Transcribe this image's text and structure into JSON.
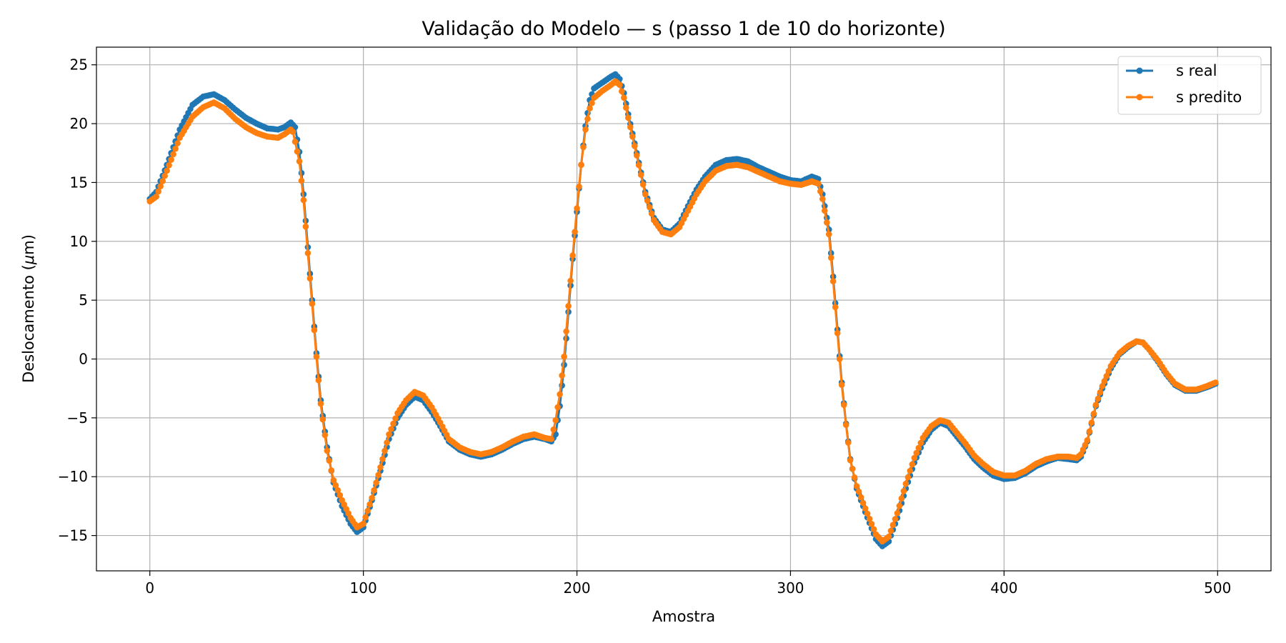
{
  "chart_data": {
    "type": "line",
    "title": "Validação do Modelo — s (passo 1 de 10 do horizonte)",
    "xlabel": "Amostra",
    "ylabel_main": "Deslocamento (",
    "ylabel_mu": "μ",
    "ylabel_unit": "m)",
    "xlim": [
      -25,
      525
    ],
    "ylim": [
      -18,
      26.5
    ],
    "xticks": [
      0,
      100,
      200,
      300,
      400,
      500
    ],
    "yticks": [
      -15,
      -10,
      -5,
      0,
      5,
      10,
      15,
      20,
      25
    ],
    "ytick_labels": [
      "−15",
      "−10",
      "−5",
      "0",
      "5",
      "10",
      "15",
      "20",
      "25"
    ],
    "grid": true,
    "legend_position": "upper-right",
    "keypoints_real": [
      [
        0,
        13.6
      ],
      [
        3,
        14.2
      ],
      [
        8,
        16.5
      ],
      [
        14,
        19.5
      ],
      [
        20,
        21.6
      ],
      [
        25,
        22.3
      ],
      [
        30,
        22.5
      ],
      [
        35,
        22.0
      ],
      [
        40,
        21.2
      ],
      [
        45,
        20.5
      ],
      [
        50,
        20.0
      ],
      [
        55,
        19.6
      ],
      [
        60,
        19.5
      ],
      [
        63,
        19.7
      ],
      [
        66,
        20.1
      ],
      [
        68,
        19.7
      ],
      [
        70,
        17.6
      ],
      [
        72,
        14.0
      ],
      [
        74,
        9.5
      ],
      [
        76,
        5.0
      ],
      [
        78,
        0.5
      ],
      [
        80,
        -3.5
      ],
      [
        83,
        -7.5
      ],
      [
        86,
        -10.5
      ],
      [
        90,
        -12.5
      ],
      [
        94,
        -14.0
      ],
      [
        97,
        -14.7
      ],
      [
        100,
        -14.3
      ],
      [
        104,
        -12.0
      ],
      [
        108,
        -9.5
      ],
      [
        112,
        -6.8
      ],
      [
        116,
        -5.0
      ],
      [
        120,
        -3.9
      ],
      [
        124,
        -3.2
      ],
      [
        128,
        -3.5
      ],
      [
        132,
        -4.5
      ],
      [
        136,
        -5.7
      ],
      [
        140,
        -7.0
      ],
      [
        145,
        -7.7
      ],
      [
        150,
        -8.1
      ],
      [
        155,
        -8.3
      ],
      [
        160,
        -8.1
      ],
      [
        165,
        -7.7
      ],
      [
        170,
        -7.2
      ],
      [
        175,
        -6.8
      ],
      [
        180,
        -6.6
      ],
      [
        185,
        -6.8
      ],
      [
        188,
        -7.0
      ],
      [
        190,
        -6.4
      ],
      [
        192,
        -4.0
      ],
      [
        194,
        -0.5
      ],
      [
        196,
        4.0
      ],
      [
        198,
        8.5
      ],
      [
        200,
        12.5
      ],
      [
        202,
        16.5
      ],
      [
        204,
        19.8
      ],
      [
        206,
        22.0
      ],
      [
        208,
        23.0
      ],
      [
        212,
        23.5
      ],
      [
        216,
        24.0
      ],
      [
        218,
        24.2
      ],
      [
        220,
        23.8
      ],
      [
        222,
        22.6
      ],
      [
        224,
        20.8
      ],
      [
        228,
        17.5
      ],
      [
        232,
        14.2
      ],
      [
        236,
        12.0
      ],
      [
        240,
        11.0
      ],
      [
        244,
        10.8
      ],
      [
        248,
        11.5
      ],
      [
        252,
        13.0
      ],
      [
        256,
        14.4
      ],
      [
        260,
        15.5
      ],
      [
        265,
        16.5
      ],
      [
        270,
        16.9
      ],
      [
        275,
        17.0
      ],
      [
        280,
        16.8
      ],
      [
        285,
        16.3
      ],
      [
        290,
        15.9
      ],
      [
        295,
        15.5
      ],
      [
        300,
        15.2
      ],
      [
        305,
        15.1
      ],
      [
        310,
        15.5
      ],
      [
        313,
        15.3
      ],
      [
        315,
        14.0
      ],
      [
        318,
        11.0
      ],
      [
        320,
        7.0
      ],
      [
        322,
        2.5
      ],
      [
        324,
        -2.0
      ],
      [
        326,
        -5.5
      ],
      [
        328,
        -8.5
      ],
      [
        331,
        -11.0
      ],
      [
        335,
        -13.0
      ],
      [
        340,
        -15.3
      ],
      [
        343,
        -15.9
      ],
      [
        346,
        -15.5
      ],
      [
        350,
        -13.5
      ],
      [
        354,
        -11.0
      ],
      [
        358,
        -8.8
      ],
      [
        362,
        -7.1
      ],
      [
        366,
        -6.0
      ],
      [
        370,
        -5.4
      ],
      [
        374,
        -5.7
      ],
      [
        378,
        -6.6
      ],
      [
        382,
        -7.5
      ],
      [
        386,
        -8.5
      ],
      [
        390,
        -9.2
      ],
      [
        395,
        -9.9
      ],
      [
        400,
        -10.2
      ],
      [
        405,
        -10.1
      ],
      [
        410,
        -9.7
      ],
      [
        415,
        -9.1
      ],
      [
        420,
        -8.7
      ],
      [
        425,
        -8.4
      ],
      [
        430,
        -8.5
      ],
      [
        434,
        -8.6
      ],
      [
        436,
        -8.3
      ],
      [
        439,
        -7.0
      ],
      [
        441,
        -5.5
      ],
      [
        443,
        -4.0
      ],
      [
        446,
        -2.5
      ],
      [
        450,
        -0.8
      ],
      [
        454,
        0.4
      ],
      [
        458,
        1.0
      ],
      [
        462,
        1.5
      ],
      [
        465,
        1.4
      ],
      [
        468,
        0.8
      ],
      [
        472,
        -0.2
      ],
      [
        476,
        -1.3
      ],
      [
        480,
        -2.2
      ],
      [
        485,
        -2.7
      ],
      [
        490,
        -2.7
      ],
      [
        495,
        -2.4
      ],
      [
        499,
        -2.1
      ]
    ],
    "keypoints_pred": [
      [
        0,
        13.4
      ],
      [
        3,
        13.8
      ],
      [
        8,
        16.0
      ],
      [
        14,
        18.8
      ],
      [
        20,
        20.6
      ],
      [
        25,
        21.4
      ],
      [
        30,
        21.8
      ],
      [
        35,
        21.3
      ],
      [
        40,
        20.4
      ],
      [
        45,
        19.7
      ],
      [
        50,
        19.2
      ],
      [
        55,
        18.9
      ],
      [
        60,
        18.8
      ],
      [
        63,
        19.1
      ],
      [
        66,
        19.5
      ],
      [
        67,
        19.3
      ],
      [
        70,
        16.8
      ],
      [
        72,
        13.5
      ],
      [
        74,
        9.0
      ],
      [
        76,
        4.7
      ],
      [
        78,
        0.2
      ],
      [
        80,
        -3.8
      ],
      [
        83,
        -7.8
      ],
      [
        86,
        -10.3
      ],
      [
        90,
        -12.0
      ],
      [
        94,
        -13.5
      ],
      [
        97,
        -14.3
      ],
      [
        100,
        -14.0
      ],
      [
        104,
        -11.8
      ],
      [
        108,
        -9.2
      ],
      [
        112,
        -6.4
      ],
      [
        116,
        -4.6
      ],
      [
        120,
        -3.5
      ],
      [
        124,
        -2.8
      ],
      [
        128,
        -3.1
      ],
      [
        132,
        -4.1
      ],
      [
        136,
        -5.4
      ],
      [
        140,
        -6.8
      ],
      [
        145,
        -7.5
      ],
      [
        150,
        -7.9
      ],
      [
        155,
        -8.1
      ],
      [
        160,
        -7.9
      ],
      [
        165,
        -7.5
      ],
      [
        170,
        -7.0
      ],
      [
        175,
        -6.6
      ],
      [
        180,
        -6.4
      ],
      [
        185,
        -6.7
      ],
      [
        188,
        -6.8
      ],
      [
        190,
        -5.2
      ],
      [
        192,
        -3.0
      ],
      [
        194,
        0.2
      ],
      [
        196,
        4.5
      ],
      [
        198,
        8.8
      ],
      [
        200,
        12.8
      ],
      [
        202,
        16.5
      ],
      [
        204,
        19.5
      ],
      [
        206,
        21.3
      ],
      [
        208,
        22.2
      ],
      [
        212,
        22.8
      ],
      [
        216,
        23.3
      ],
      [
        218,
        23.6
      ],
      [
        220,
        23.3
      ],
      [
        222,
        22.2
      ],
      [
        224,
        20.5
      ],
      [
        228,
        17.3
      ],
      [
        232,
        14.0
      ],
      [
        236,
        11.8
      ],
      [
        240,
        10.8
      ],
      [
        244,
        10.6
      ],
      [
        248,
        11.2
      ],
      [
        252,
        12.6
      ],
      [
        256,
        14.0
      ],
      [
        260,
        15.1
      ],
      [
        265,
        16.0
      ],
      [
        270,
        16.4
      ],
      [
        275,
        16.5
      ],
      [
        280,
        16.3
      ],
      [
        285,
        15.9
      ],
      [
        290,
        15.5
      ],
      [
        295,
        15.1
      ],
      [
        300,
        14.9
      ],
      [
        305,
        14.8
      ],
      [
        310,
        15.1
      ],
      [
        313,
        14.9
      ],
      [
        315,
        13.6
      ],
      [
        318,
        10.6
      ],
      [
        320,
        6.6
      ],
      [
        322,
        2.2
      ],
      [
        324,
        -2.2
      ],
      [
        326,
        -5.6
      ],
      [
        328,
        -8.6
      ],
      [
        331,
        -10.8
      ],
      [
        335,
        -12.7
      ],
      [
        340,
        -14.9
      ],
      [
        343,
        -15.5
      ],
      [
        346,
        -15.1
      ],
      [
        350,
        -13.1
      ],
      [
        354,
        -10.6
      ],
      [
        358,
        -8.4
      ],
      [
        362,
        -6.7
      ],
      [
        366,
        -5.7
      ],
      [
        370,
        -5.2
      ],
      [
        374,
        -5.4
      ],
      [
        378,
        -6.3
      ],
      [
        382,
        -7.2
      ],
      [
        386,
        -8.2
      ],
      [
        390,
        -8.9
      ],
      [
        395,
        -9.6
      ],
      [
        400,
        -9.9
      ],
      [
        405,
        -9.9
      ],
      [
        410,
        -9.5
      ],
      [
        415,
        -8.9
      ],
      [
        420,
        -8.5
      ],
      [
        425,
        -8.3
      ],
      [
        430,
        -8.3
      ],
      [
        434,
        -8.4
      ],
      [
        436,
        -8.1
      ],
      [
        439,
        -6.9
      ],
      [
        441,
        -5.4
      ],
      [
        443,
        -3.9
      ],
      [
        446,
        -2.3
      ],
      [
        450,
        -0.6
      ],
      [
        454,
        0.5
      ],
      [
        458,
        1.1
      ],
      [
        462,
        1.5
      ],
      [
        465,
        1.4
      ],
      [
        468,
        0.8
      ],
      [
        472,
        -0.1
      ],
      [
        476,
        -1.2
      ],
      [
        480,
        -2.1
      ],
      [
        485,
        -2.6
      ],
      [
        490,
        -2.6
      ],
      [
        495,
        -2.3
      ],
      [
        499,
        -2.0
      ]
    ],
    "series": [
      {
        "name": "s real",
        "color": "#1f77b4"
      },
      {
        "name": "s predito",
        "color": "#ff7f0e"
      }
    ]
  }
}
